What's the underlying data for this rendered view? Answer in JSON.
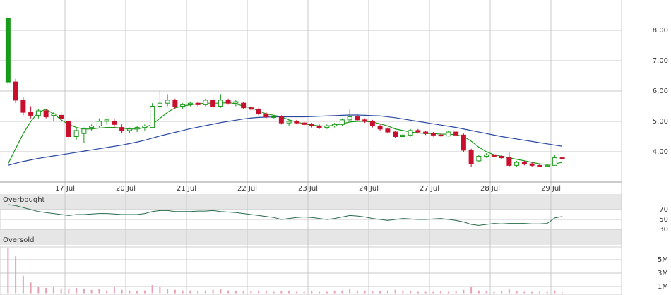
{
  "chart_data": [
    {
      "type": "candlestick",
      "categories": [
        null,
        null,
        null,
        null,
        null,
        null,
        null,
        null,
        "17 Jul",
        null,
        null,
        null,
        null,
        null,
        null,
        null,
        "20 Jul",
        null,
        null,
        null,
        null,
        null,
        null,
        null,
        "21 Jul",
        null,
        null,
        null,
        null,
        null,
        null,
        null,
        "22 Jul",
        null,
        null,
        null,
        null,
        null,
        null,
        null,
        "23 Jul",
        null,
        null,
        null,
        null,
        null,
        null,
        null,
        "24 Jul",
        null,
        null,
        null,
        null,
        null,
        null,
        null,
        "27 Jul",
        null,
        null,
        null,
        null,
        null,
        null,
        null,
        "28 Jul",
        null,
        null,
        null,
        null,
        null,
        null,
        null,
        "29 Jul",
        null
      ],
      "open": [
        6.3,
        6.3,
        5.7,
        5.3,
        5.2,
        5.35,
        5.2,
        5.2,
        5.0,
        4.5,
        4.6,
        4.8,
        4.85,
        5.0,
        5.0,
        4.8,
        4.7,
        4.75,
        4.8,
        4.8,
        5.5,
        5.6,
        5.7,
        5.5,
        5.55,
        5.6,
        5.55,
        5.7,
        5.5,
        5.7,
        5.6,
        5.6,
        5.45,
        5.4,
        5.25,
        5.15,
        5.15,
        4.95,
        5.0,
        4.95,
        4.9,
        4.85,
        4.8,
        4.85,
        4.9,
        5.05,
        5.15,
        5.05,
        5.0,
        4.85,
        4.75,
        4.65,
        4.5,
        4.55,
        4.7,
        4.65,
        4.6,
        4.55,
        4.52,
        4.65,
        4.55,
        4.05,
        3.7,
        3.85,
        3.9,
        3.85,
        3.8,
        3.55,
        3.65,
        3.6,
        3.55,
        3.52,
        3.55,
        3.8
      ],
      "high": [
        8.5,
        6.4,
        5.8,
        5.5,
        5.4,
        5.4,
        5.3,
        5.3,
        5.1,
        4.8,
        4.8,
        4.9,
        5.1,
        5.1,
        5.1,
        4.9,
        4.8,
        4.85,
        4.9,
        5.6,
        6.0,
        5.9,
        5.75,
        5.6,
        5.65,
        5.65,
        5.75,
        5.8,
        5.9,
        5.75,
        5.7,
        5.65,
        5.5,
        5.45,
        5.3,
        5.2,
        5.2,
        5.05,
        5.05,
        5.0,
        4.95,
        4.9,
        4.9,
        4.95,
        5.1,
        5.4,
        5.25,
        5.1,
        5.05,
        4.9,
        4.8,
        4.7,
        4.6,
        4.75,
        4.75,
        4.7,
        4.65,
        4.6,
        4.7,
        4.7,
        4.6,
        4.1,
        3.9,
        3.95,
        3.95,
        3.9,
        4.0,
        3.7,
        3.7,
        3.65,
        3.6,
        3.6,
        3.9,
        3.8
      ],
      "low": [
        6.2,
        5.6,
        5.2,
        5.1,
        5.1,
        5.1,
        5.0,
        5.0,
        4.4,
        4.4,
        4.3,
        4.7,
        4.8,
        4.9,
        4.8,
        4.6,
        4.6,
        4.65,
        4.7,
        4.8,
        5.4,
        5.5,
        5.4,
        5.4,
        5.5,
        5.5,
        5.5,
        5.4,
        5.45,
        5.55,
        5.5,
        5.4,
        5.35,
        5.2,
        5.1,
        5.1,
        4.9,
        4.85,
        4.9,
        4.85,
        4.8,
        4.75,
        4.75,
        4.8,
        4.85,
        5.0,
        5.0,
        4.95,
        4.8,
        4.7,
        4.6,
        4.45,
        4.45,
        4.5,
        4.6,
        4.55,
        4.5,
        4.5,
        4.5,
        4.5,
        4.0,
        3.5,
        3.65,
        3.8,
        3.8,
        3.75,
        3.5,
        3.5,
        3.55,
        3.5,
        3.5,
        3.5,
        3.55,
        3.75
      ],
      "close": [
        8.4,
        5.7,
        5.3,
        5.2,
        5.35,
        5.15,
        5.25,
        5.1,
        4.5,
        4.7,
        4.75,
        4.85,
        5.0,
        5.05,
        4.9,
        4.7,
        4.75,
        4.8,
        4.85,
        5.5,
        5.6,
        5.7,
        5.5,
        5.55,
        5.6,
        5.55,
        5.7,
        5.5,
        5.7,
        5.6,
        5.65,
        5.45,
        5.4,
        5.25,
        5.15,
        5.15,
        4.95,
        5.0,
        4.95,
        4.9,
        4.85,
        4.8,
        4.85,
        4.9,
        5.05,
        5.15,
        5.05,
        5.0,
        4.85,
        4.75,
        4.65,
        4.5,
        4.55,
        4.7,
        4.65,
        4.6,
        4.55,
        4.52,
        4.65,
        4.55,
        4.05,
        3.6,
        3.85,
        3.9,
        3.85,
        3.8,
        3.55,
        3.65,
        3.6,
        3.55,
        3.52,
        3.55,
        3.8,
        3.78
      ],
      "up_color": "#1a9a1a",
      "down_color": "#c8102e",
      "series": [
        {
          "color": "#1a9a1a",
          "values": [
            3.6,
            4.1,
            4.6,
            5.0,
            5.3,
            5.4,
            5.25,
            5.05,
            4.9,
            4.8,
            4.75,
            4.75,
            4.78,
            4.8,
            4.8,
            4.78,
            4.75,
            4.75,
            4.8,
            4.9,
            5.1,
            5.3,
            5.45,
            5.5,
            5.55,
            5.58,
            5.6,
            5.6,
            5.6,
            5.62,
            5.58,
            5.5,
            5.45,
            5.35,
            5.25,
            5.2,
            5.15,
            5.05,
            4.98,
            4.92,
            4.88,
            4.85,
            4.85,
            4.87,
            4.92,
            4.98,
            5.0,
            5.0,
            4.98,
            4.92,
            4.85,
            4.75,
            4.7,
            4.65,
            4.62,
            4.6,
            4.6,
            4.58,
            4.58,
            4.56,
            4.5,
            4.35,
            4.15,
            4.0,
            3.9,
            3.85,
            3.8,
            3.75,
            3.7,
            3.65,
            3.6,
            3.58,
            3.6,
            3.65
          ]
        },
        {
          "color": "#2a4aa0",
          "values": [
            3.55,
            3.62,
            3.68,
            3.73,
            3.78,
            3.82,
            3.86,
            3.9,
            3.94,
            3.98,
            4.02,
            4.06,
            4.1,
            4.14,
            4.18,
            4.22,
            4.27,
            4.32,
            4.38,
            4.45,
            4.52,
            4.58,
            4.64,
            4.7,
            4.76,
            4.81,
            4.86,
            4.91,
            4.96,
            5.0,
            5.04,
            5.08,
            5.11,
            5.13,
            5.14,
            5.15,
            5.15,
            5.15,
            5.15,
            5.15,
            5.16,
            5.17,
            5.18,
            5.19,
            5.2,
            5.21,
            5.21,
            5.2,
            5.19,
            5.18,
            5.15,
            5.12,
            5.08,
            5.04,
            5.0,
            4.96,
            4.92,
            4.88,
            4.84,
            4.8,
            4.75,
            4.7,
            4.65,
            4.6,
            4.55,
            4.5,
            4.46,
            4.42,
            4.38,
            4.34,
            4.3,
            4.26,
            4.22,
            4.18
          ]
        }
      ],
      "ylim": [
        3,
        9
      ],
      "yticks": [
        {
          "value": 4,
          "label": "4.00"
        },
        {
          "value": 5,
          "label": "5.00"
        },
        {
          "value": 6,
          "label": "6.00"
        },
        {
          "value": 7,
          "label": "7.00"
        },
        {
          "value": 8,
          "label": "8.00"
        }
      ],
      "grid": true
    },
    {
      "type": "line",
      "annotations": [
        "Overbought",
        "Oversold"
      ],
      "color": "#2a6a4a",
      "values": [
        80,
        78,
        74,
        70,
        66,
        64,
        62,
        60,
        58,
        60,
        60,
        61,
        62,
        62,
        61,
        60,
        60,
        60,
        62,
        66,
        68,
        68,
        66,
        66,
        66,
        67,
        67,
        68,
        66,
        65,
        64,
        62,
        60,
        58,
        56,
        54,
        50,
        52,
        54,
        55,
        54,
        52,
        50,
        52,
        55,
        58,
        57,
        55,
        52,
        50,
        48,
        50,
        52,
        51,
        50,
        50,
        51,
        52,
        50,
        48,
        45,
        40,
        38,
        40,
        42,
        41,
        42,
        42,
        42,
        41,
        41,
        42,
        53,
        56
      ],
      "ylim": [
        0,
        100
      ],
      "yticks": [
        70,
        50,
        30
      ]
    },
    {
      "type": "bar",
      "color": "#e8a0b0",
      "values": [
        6800000,
        5500000,
        2600000,
        1600000,
        1000000,
        800000,
        900000,
        700000,
        600000,
        800000,
        700000,
        500000,
        600000,
        400000,
        900000,
        500000,
        400000,
        300000,
        400000,
        1200000,
        900000,
        600000,
        500000,
        400000,
        400000,
        300000,
        400000,
        500000,
        600000,
        400000,
        300000,
        300000,
        300000,
        400000,
        300000,
        200000,
        300000,
        300000,
        200000,
        200000,
        300000,
        200000,
        200000,
        300000,
        400000,
        600000,
        400000,
        300000,
        300000,
        300000,
        400000,
        500000,
        300000,
        300000,
        200000,
        200000,
        200000,
        300000,
        200000,
        300000,
        500000,
        900000,
        400000,
        300000,
        200000,
        300000,
        600000,
        300000,
        200000,
        200000,
        200000,
        200000,
        400000,
        100000
      ],
      "ylim": [
        0,
        6900000
      ],
      "yticks": [
        {
          "value": 5000000,
          "label": "5M"
        },
        {
          "value": 3000000,
          "label": "3M"
        },
        {
          "value": 1000000,
          "label": "1M"
        }
      ]
    }
  ]
}
